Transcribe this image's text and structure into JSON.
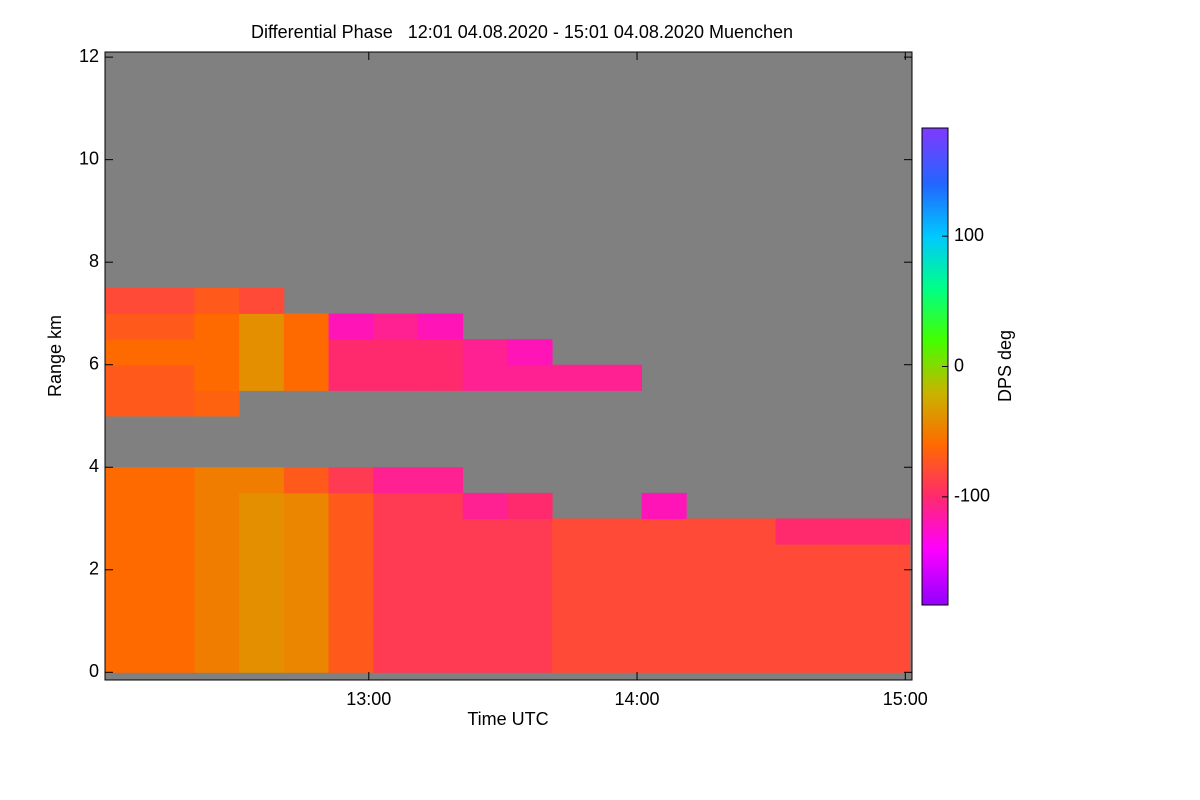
{
  "chart_data": {
    "type": "heatmap",
    "title": "Differential Phase   12:01 04.08.2020 - 15:01 04.08.2020 Muenchen",
    "x_label": "Time UTC",
    "y_label": "Range km",
    "x_edges": [
      12.0167,
      12.1833,
      12.35,
      12.5167,
      12.6833,
      12.85,
      13.0167,
      13.1833,
      13.35,
      13.5167,
      13.6833,
      13.85,
      14.0167,
      14.1833,
      14.35,
      14.5167,
      14.6833,
      14.85,
      15.0167
    ],
    "y_edges": [
      0,
      0.5,
      1,
      1.5,
      2,
      2.5,
      3,
      3.5,
      4,
      4.5,
      5,
      5.5,
      6,
      6.5,
      7,
      7.5,
      8,
      8.5,
      9,
      9.5,
      10,
      10.5,
      11,
      11.5,
      12
    ],
    "values": [
      [
        -60,
        -60,
        -60,
        -60,
        -60,
        -60,
        -60,
        -60,
        null,
        null,
        -70,
        -70,
        -60,
        -70,
        -80,
        null,
        null,
        null,
        null,
        null,
        null,
        null,
        null,
        null
      ],
      [
        -60,
        -60,
        -60,
        -60,
        -60,
        -60,
        -60,
        -60,
        null,
        null,
        -70,
        -70,
        -60,
        -70,
        -80,
        null,
        null,
        null,
        null,
        null,
        null,
        null,
        null,
        null
      ],
      [
        -50,
        -50,
        -50,
        -50,
        -50,
        -50,
        -50,
        -50,
        null,
        null,
        -65,
        -60,
        -60,
        -60,
        -70,
        null,
        null,
        null,
        null,
        null,
        null,
        null,
        null,
        null
      ],
      [
        -40,
        -40,
        -40,
        -40,
        -40,
        -40,
        -40,
        -50,
        null,
        null,
        null,
        -40,
        -40,
        -40,
        -80,
        null,
        null,
        null,
        null,
        null,
        null,
        null,
        null,
        null
      ],
      [
        -45,
        -45,
        -45,
        -45,
        -45,
        -45,
        -45,
        -70,
        null,
        null,
        null,
        -60,
        -60,
        -60,
        null,
        null,
        null,
        null,
        null,
        null,
        null,
        null,
        null,
        null
      ],
      [
        -70,
        -70,
        -70,
        -70,
        -70,
        -70,
        -70,
        -90,
        null,
        null,
        null,
        -100,
        -100,
        -120,
        null,
        null,
        null,
        null,
        null,
        null,
        null,
        null,
        null,
        null
      ],
      [
        -90,
        -90,
        -90,
        -90,
        -90,
        -90,
        -90,
        -110,
        null,
        null,
        null,
        -100,
        -100,
        -110,
        null,
        null,
        null,
        null,
        null,
        null,
        null,
        null,
        null,
        null
      ],
      [
        -90,
        -90,
        -90,
        -90,
        -90,
        -90,
        -90,
        -110,
        null,
        null,
        null,
        -100,
        -100,
        -120,
        null,
        null,
        null,
        null,
        null,
        null,
        null,
        null,
        null,
        null
      ],
      [
        -90,
        -90,
        -90,
        -90,
        -90,
        -90,
        -110,
        null,
        null,
        null,
        null,
        -110,
        -110,
        null,
        null,
        null,
        null,
        null,
        null,
        null,
        null,
        null,
        null,
        null
      ],
      [
        -90,
        -90,
        -90,
        -90,
        -90,
        -90,
        -100,
        null,
        null,
        null,
        null,
        -110,
        -120,
        null,
        null,
        null,
        null,
        null,
        null,
        null,
        null,
        null,
        null,
        null
      ],
      [
        -80,
        -80,
        -80,
        -80,
        -80,
        -80,
        null,
        null,
        null,
        null,
        null,
        -110,
        null,
        null,
        null,
        null,
        null,
        null,
        null,
        null,
        null,
        null,
        null,
        null
      ],
      [
        -80,
        -80,
        -80,
        -80,
        -80,
        -80,
        null,
        null,
        null,
        null,
        null,
        -110,
        null,
        null,
        null,
        null,
        null,
        null,
        null,
        null,
        null,
        null,
        null,
        null
      ],
      [
        -80,
        -80,
        -80,
        -80,
        -80,
        -80,
        -120,
        null,
        null,
        null,
        null,
        null,
        null,
        null,
        null,
        null,
        null,
        null,
        null,
        null,
        null,
        null,
        null,
        null
      ],
      [
        -80,
        -80,
        -80,
        -80,
        -80,
        -80,
        null,
        null,
        null,
        null,
        null,
        null,
        null,
        null,
        null,
        null,
        null,
        null,
        null,
        null,
        null,
        null,
        null,
        null
      ],
      [
        -80,
        -80,
        -80,
        -80,
        -80,
        -80,
        null,
        null,
        null,
        null,
        null,
        null,
        null,
        null,
        null,
        null,
        null,
        null,
        null,
        null,
        null,
        null,
        null,
        null
      ],
      [
        -80,
        -80,
        -80,
        -80,
        -80,
        -100,
        null,
        null,
        null,
        null,
        null,
        null,
        null,
        null,
        null,
        null,
        null,
        null,
        null,
        null,
        null,
        null,
        null,
        null
      ],
      [
        -80,
        -80,
        -80,
        -80,
        -80,
        -100,
        null,
        null,
        null,
        null,
        null,
        null,
        null,
        null,
        null,
        null,
        null,
        null,
        null,
        null,
        null,
        null,
        null,
        null
      ],
      [
        -80,
        -80,
        -80,
        -80,
        -80,
        -100,
        null,
        null,
        null,
        null,
        null,
        null,
        null,
        null,
        null,
        null,
        null,
        null,
        null,
        null,
        null,
        null,
        null,
        null
      ]
    ],
    "no_signal_color": "#808080",
    "xlim": [
      12.0167,
      15.025
    ],
    "xticks": [
      {
        "value": 13,
        "label": "13:00"
      },
      {
        "value": 14,
        "label": "14:00"
      },
      {
        "value": 15,
        "label": "15:00"
      }
    ],
    "ylim": [
      -0.15,
      12.1
    ],
    "yticks": [
      0,
      2,
      4,
      6,
      8,
      10,
      12
    ],
    "colorbar": {
      "label": "DPS deg",
      "lim": [
        -183,
        183
      ],
      "ticks": [
        -100,
        0,
        100
      ],
      "colormap": [
        {
          "value": -180,
          "color": "#9900ff"
        },
        {
          "value": -140,
          "color": "#ff00ff"
        },
        {
          "value": -100,
          "color": "#ff2a6e"
        },
        {
          "value": -60,
          "color": "#ff6a00"
        },
        {
          "value": -20,
          "color": "#c8b400"
        },
        {
          "value": 20,
          "color": "#44ff00"
        },
        {
          "value": 60,
          "color": "#00ff88"
        },
        {
          "value": 100,
          "color": "#00c8ff"
        },
        {
          "value": 140,
          "color": "#2266ff"
        },
        {
          "value": 180,
          "color": "#7a3cff"
        }
      ]
    }
  }
}
